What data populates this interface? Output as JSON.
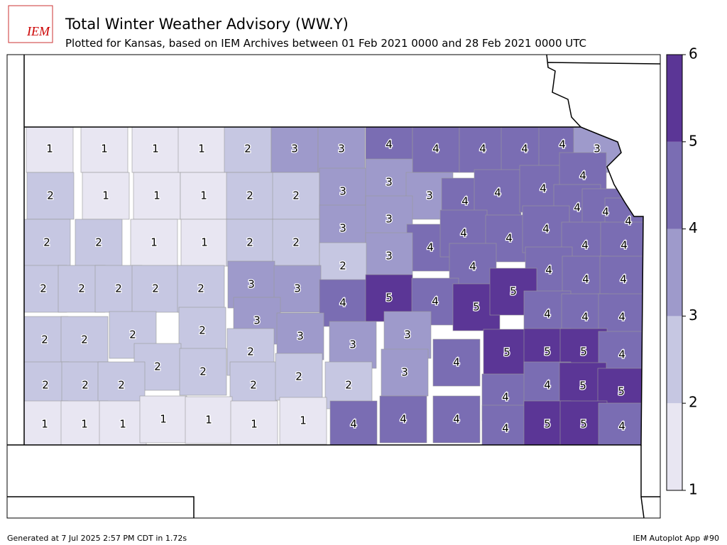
{
  "logo": "IEM",
  "title": "Total Winter Weather Advisory (WW.Y)",
  "subtitle": "Plotted for Kansas, based on IEM Archives  between 01 Feb 2021 0000 and 28 Feb 2021 0000 UTC",
  "colorbar": {
    "ticks": [
      1,
      2,
      3,
      4,
      5,
      6
    ],
    "colors": [
      "#e8e6f2",
      "#c6c7e2",
      "#9e9acb",
      "#7a6db3",
      "#5b3696"
    ]
  },
  "counties": {
    "values": [
      1,
      1,
      1,
      1,
      2,
      3,
      3,
      4,
      4,
      4,
      4,
      4,
      3,
      2,
      1,
      1,
      1,
      2,
      2,
      3,
      3,
      3,
      4,
      4,
      4,
      4,
      4,
      4,
      4,
      2,
      2,
      1,
      1,
      2,
      2,
      3,
      3,
      4,
      4,
      4,
      4,
      4,
      4,
      3,
      2,
      4,
      4,
      2,
      2,
      2,
      2,
      2,
      3,
      3,
      4,
      5,
      4,
      5,
      5,
      4,
      4,
      4,
      4,
      4,
      2,
      2,
      2,
      2,
      3,
      3,
      3,
      3,
      4,
      5,
      5,
      5,
      4,
      2,
      2,
      2,
      2,
      2,
      2,
      2,
      2,
      2,
      3,
      4,
      4,
      5,
      5,
      1,
      1,
      1,
      1,
      1,
      1,
      1,
      4,
      4,
      4,
      4,
      5,
      5,
      4
    ]
  },
  "footer_left": "Generated at 7 Jul 2025 2:57 PM CDT in 1.72s",
  "footer_right": "IEM Autoplot App #90"
}
